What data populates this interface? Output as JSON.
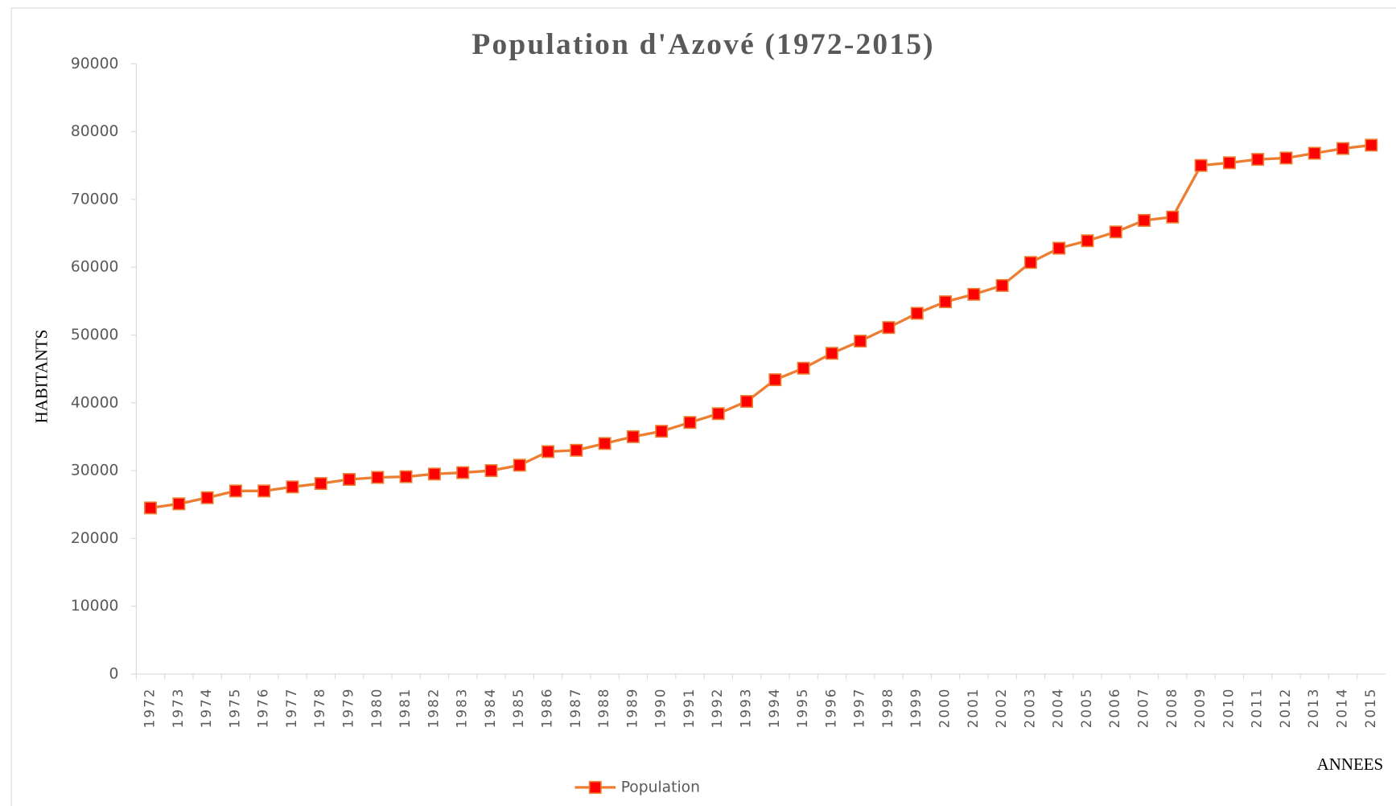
{
  "chart_data": {
    "type": "line",
    "title": "Population d'Azové (1972-2015)",
    "y_label": "HABITANTS",
    "x_label": "ANNEES",
    "categories": [
      "1972",
      "1973",
      "1974",
      "1975",
      "1976",
      "1977",
      "1978",
      "1979",
      "1980",
      "1981",
      "1982",
      "1983",
      "1984",
      "1985",
      "1986",
      "1987",
      "1988",
      "1989",
      "1990",
      "1991",
      "1992",
      "1993",
      "1994",
      "1995",
      "1996",
      "1997",
      "1998",
      "1999",
      "2000",
      "2001",
      "2002",
      "2003",
      "2004",
      "2005",
      "2006",
      "2007",
      "2008",
      "2009",
      "2010",
      "2011",
      "2012",
      "2013",
      "2014",
      "2015"
    ],
    "series": [
      {
        "name": "Population",
        "color": "#ed7d31",
        "marker_color": "#ff0000",
        "values": [
          24500,
          25100,
          26000,
          27000,
          27000,
          27600,
          28100,
          28700,
          29000,
          29100,
          29500,
          29700,
          30000,
          30800,
          32800,
          33000,
          34000,
          35000,
          35800,
          37100,
          38400,
          40200,
          43400,
          45100,
          47300,
          49100,
          51100,
          53200,
          54900,
          56000,
          57300,
          60700,
          62800,
          63900,
          65200,
          66900,
          67400,
          75000,
          75400,
          75900,
          76100,
          76800,
          77500,
          78000
        ]
      }
    ],
    "ylim": [
      0,
      90000
    ],
    "yticks": [
      0,
      10000,
      20000,
      30000,
      40000,
      50000,
      60000,
      70000,
      80000,
      90000
    ],
    "grid": false,
    "legend": "bottom"
  }
}
